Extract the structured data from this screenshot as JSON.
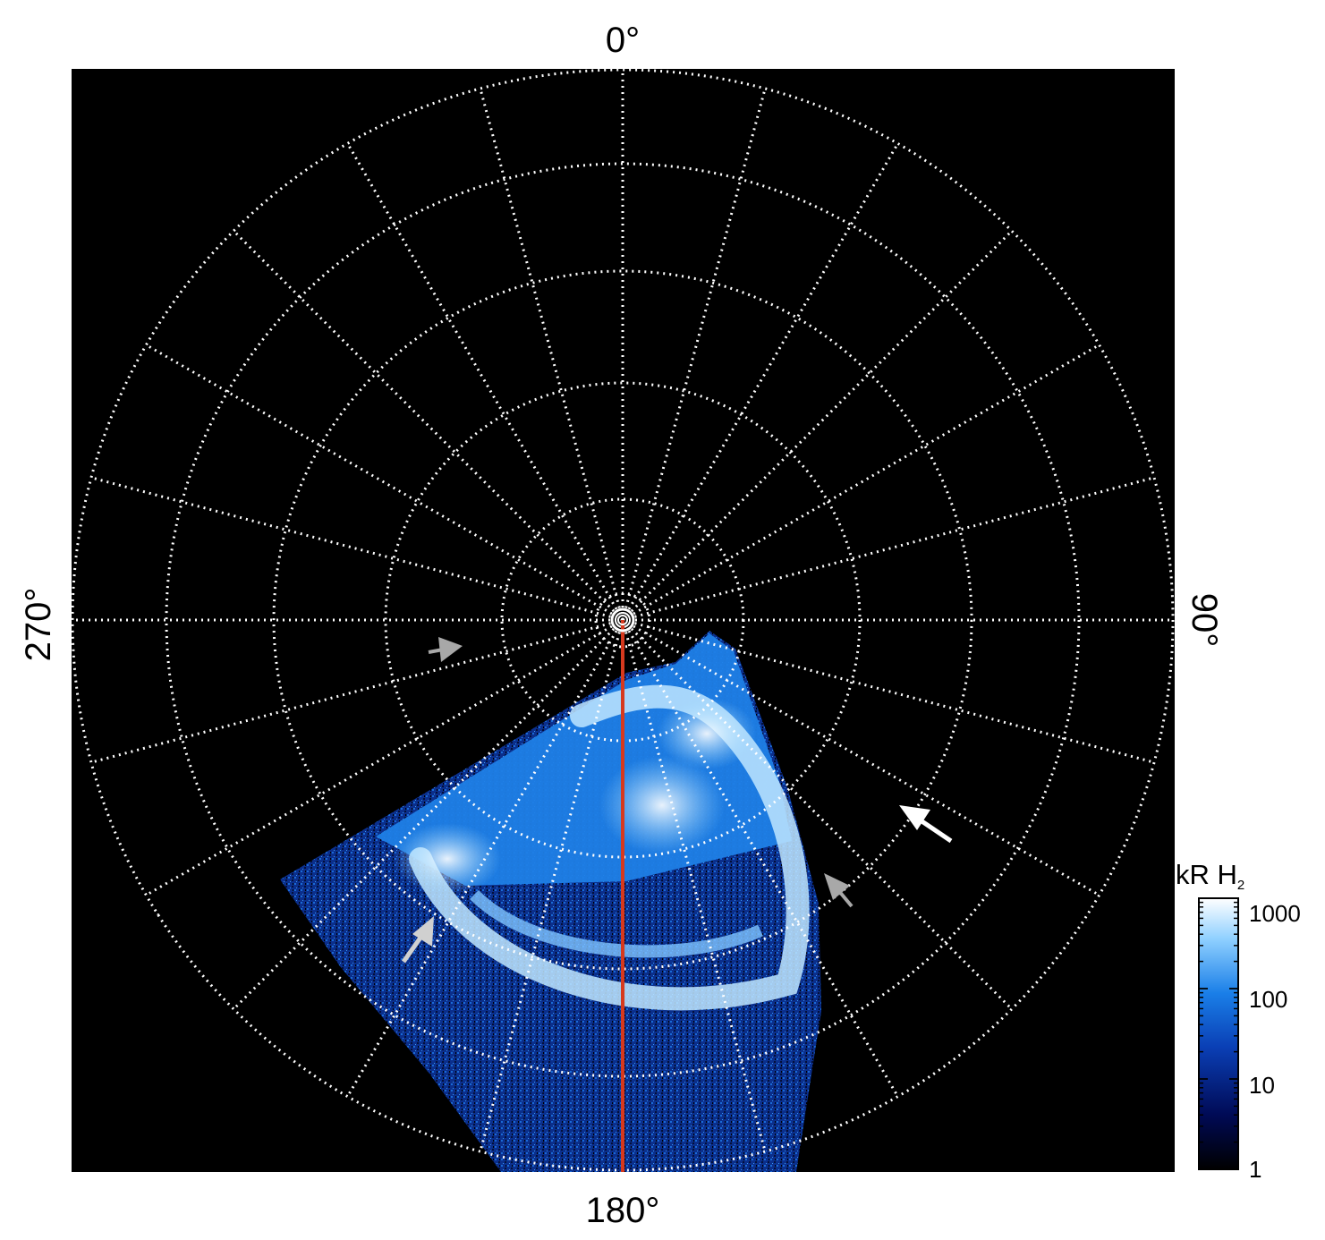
{
  "axes": {
    "longitude_labels": {
      "top": "0°",
      "right": "90°",
      "bottom": "180°",
      "left": "270°"
    }
  },
  "colorbar": {
    "title": "kR H",
    "title_subscript": "2",
    "ticks": [
      "1000",
      "100",
      "10",
      "1"
    ],
    "scale": "log",
    "range": [
      1,
      1000
    ],
    "colors": [
      "#000000",
      "#000a55",
      "#0a3fb5",
      "#1a7fe8",
      "#8fd0ff",
      "#ffffff"
    ]
  },
  "colors": {
    "background": "#000000",
    "grid": "#ffffff",
    "meridian_line": "#d6391e",
    "arrow_white": "#ffffff",
    "arrow_gray": "#a8a8a8"
  }
}
